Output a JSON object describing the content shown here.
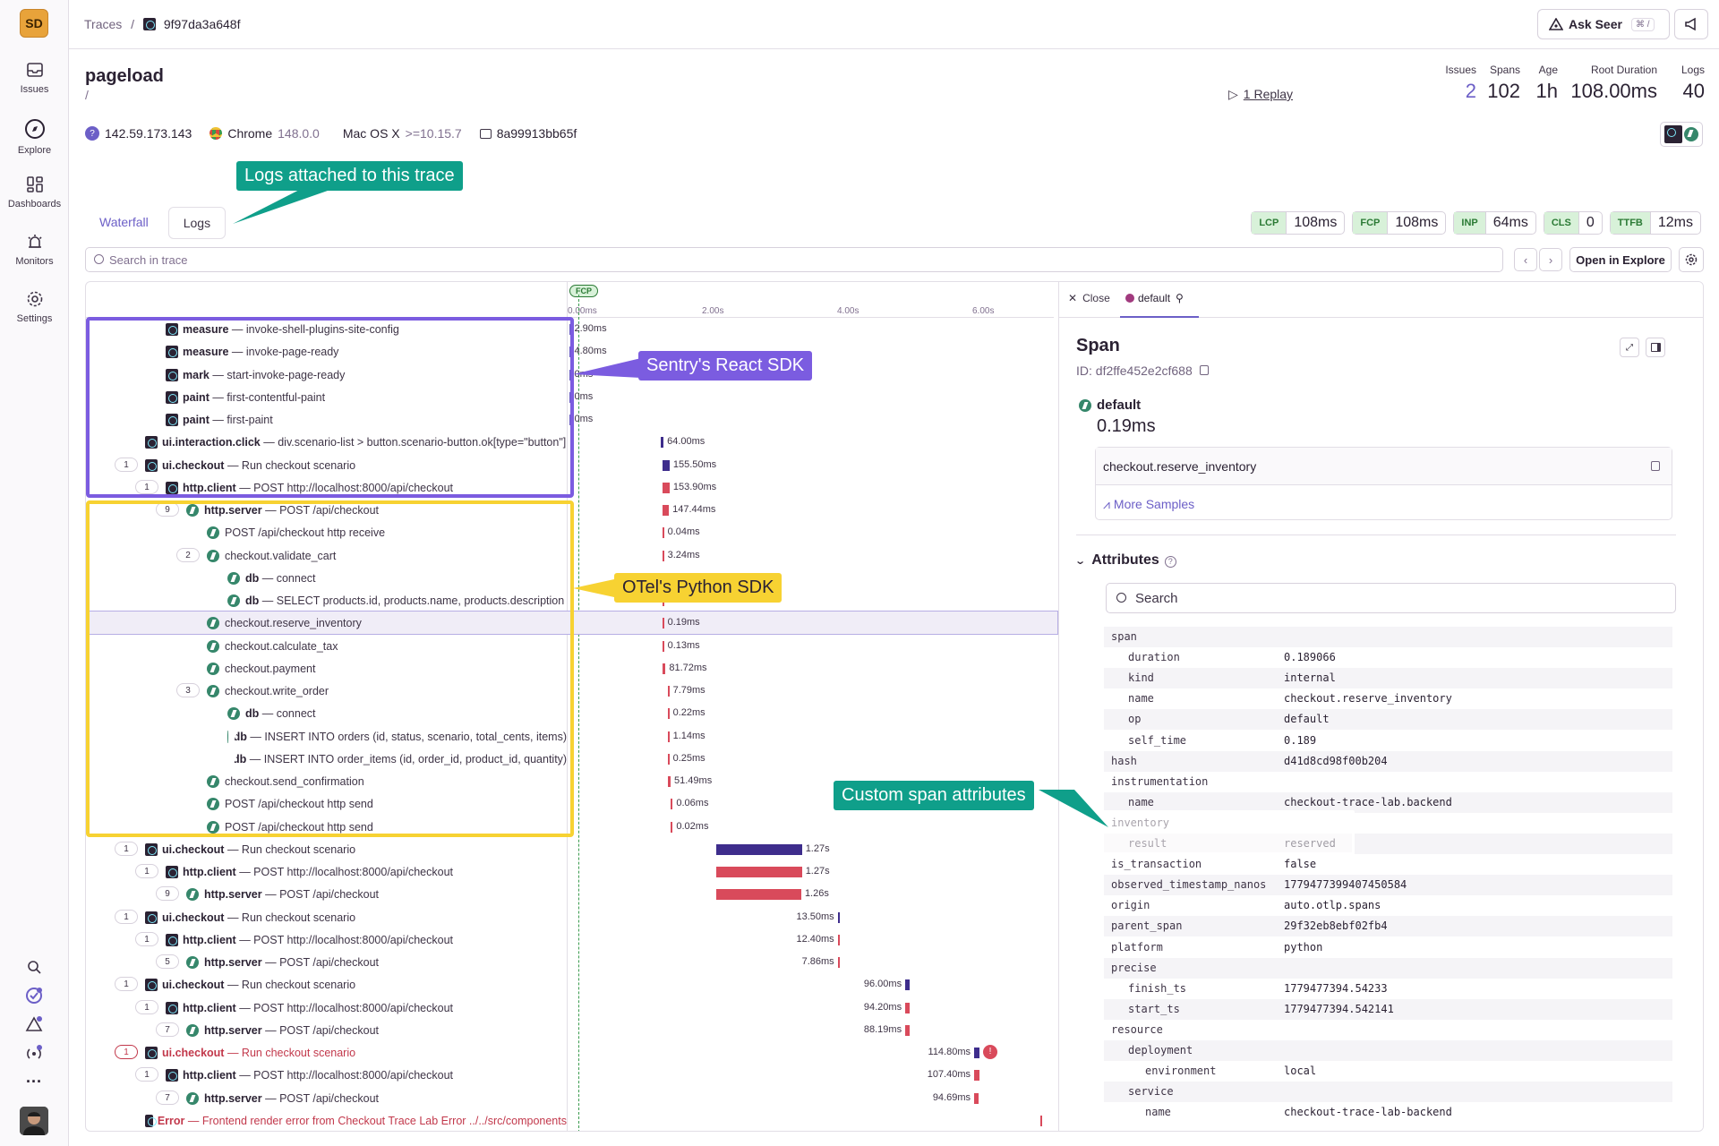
{
  "sidebar": {
    "logo": "SD",
    "items": [
      {
        "label": "Issues",
        "icon": "issues-icon"
      },
      {
        "label": "Explore",
        "icon": "compass-icon"
      },
      {
        "label": "Dashboards",
        "icon": "dashboard-icon"
      },
      {
        "label": "Monitors",
        "icon": "siren-icon"
      },
      {
        "label": "Settings",
        "icon": "gear-icon"
      }
    ],
    "bottom_icons": [
      "search-icon",
      "onboarding-icon",
      "alert-icon",
      "broadcast-icon",
      "more-icon"
    ]
  },
  "topbar": {
    "crumb_root": "Traces",
    "crumb_sep": "/",
    "trace_id": "9f97da3a648f",
    "ask_seer": "Ask Seer",
    "ask_seer_kbd": "⌘ /"
  },
  "header": {
    "title": "pageload",
    "subtitle": "/",
    "replay": "1 Replay",
    "stats": [
      {
        "label": "Issues",
        "value": "2"
      },
      {
        "label": "Spans",
        "value": "102"
      },
      {
        "label": "Age",
        "value": "1h"
      },
      {
        "label": "Root Duration",
        "value": "108.00ms"
      },
      {
        "label": "Logs",
        "value": "40"
      }
    ]
  },
  "meta": {
    "ip": "142.59.173.143",
    "browser": "Chrome",
    "browser_version": "148.0.0",
    "os": "Mac OS X",
    "os_version": ">=10.15.7",
    "replay_id": "8a99913bb65f"
  },
  "tabs": [
    "Waterfall",
    "Logs"
  ],
  "vitals": [
    {
      "key": "LCP",
      "value": "108ms"
    },
    {
      "key": "FCP",
      "value": "108ms"
    },
    {
      "key": "INP",
      "value": "64ms"
    },
    {
      "key": "CLS",
      "value": "0"
    },
    {
      "key": "TTFB",
      "value": "12ms"
    }
  ],
  "search_placeholder": "Search in trace",
  "open_explore": "Open in Explore",
  "annotations": {
    "logs": "Logs attached to this trace",
    "react": "Sentry's React SDK",
    "otel": "OTel's Python SDK",
    "custom": "Custom span attributes"
  },
  "ruler": {
    "fcp": "FCP",
    "ticks": [
      "0.00ms",
      "2.00s",
      "4.00s",
      "6.00s"
    ]
  },
  "spans": [
    {
      "op": "measure",
      "desc": "invoke-shell-plugins-site-config",
      "icon": "react",
      "dur": "2.90ms",
      "start": 0.02,
      "width": 0.001,
      "color": "#6c5fc7"
    },
    {
      "op": "measure",
      "desc": "invoke-page-ready",
      "icon": "react",
      "dur": "4.80ms",
      "start": 0.02,
      "width": 0.001,
      "color": "#6c5fc7"
    },
    {
      "op": "mark",
      "desc": "start-invoke-page-ready",
      "icon": "react",
      "dur": "0ms",
      "start": 0.02,
      "width": 0.0,
      "color": "#6c5fc7"
    },
    {
      "op": "paint",
      "desc": "first-contentful-paint",
      "icon": "react",
      "dur": "0ms",
      "start": 0.02,
      "width": 0.0,
      "color": "#6c5fc7"
    },
    {
      "op": "paint",
      "desc": "first-paint",
      "icon": "react",
      "dur": "0ms",
      "start": 0.02,
      "width": 0.0,
      "color": "#6c5fc7"
    },
    {
      "op": "ui.interaction.click",
      "desc": "div.scenario-list > button.scenario-button.ok[type=\"button\"]",
      "icon": "react",
      "dur": "64.00ms",
      "start": 1.38,
      "width": 0.04,
      "color": "#3e2d8c"
    },
    {
      "op": "ui.checkout",
      "desc": "Run checkout scenario",
      "icon": "react",
      "count": "1",
      "dur": "155.50ms",
      "start": 1.4,
      "width": 0.11,
      "color": "#3e2d8c"
    },
    {
      "op": "http.client",
      "desc": "POST http://localhost:8000/api/checkout",
      "icon": "react",
      "count": "1",
      "dur": "153.90ms",
      "start": 1.4,
      "width": 0.11,
      "color": "#d94a5b"
    },
    {
      "op": "http.server",
      "desc": "POST /api/checkout",
      "icon": "python",
      "count": "9",
      "dur": "147.44ms",
      "start": 1.4,
      "width": 0.1,
      "color": "#d94a5b"
    },
    {
      "op": "",
      "desc": "POST /api/checkout http receive",
      "icon": "python",
      "dur": "0.04ms",
      "start": 1.4,
      "width": 0.0,
      "color": "#d94a5b"
    },
    {
      "op": "",
      "desc": "checkout.validate_cart",
      "icon": "python",
      "count": "2",
      "dur": "3.24ms",
      "start": 1.4,
      "width": 0.003,
      "color": "#d94a5b"
    },
    {
      "op": "db",
      "desc": "connect",
      "icon": "python",
      "dur": "",
      "start": 1.4,
      "width": 0.0,
      "color": "#d94a5b"
    },
    {
      "op": "db",
      "desc": "SELECT products.id, products.name, products.description",
      "icon": "python",
      "dur": "",
      "start": 1.4,
      "width": 0.0,
      "color": "#d94a5b"
    },
    {
      "op": "",
      "desc": "checkout.reserve_inventory",
      "icon": "python",
      "dur": "0.19ms",
      "start": 1.4,
      "width": 0.0,
      "color": "#d94a5b",
      "selected": true
    },
    {
      "op": "",
      "desc": "checkout.calculate_tax",
      "icon": "python",
      "dur": "0.13ms",
      "start": 1.4,
      "width": 0.0,
      "color": "#d94a5b"
    },
    {
      "op": "",
      "desc": "checkout.payment",
      "icon": "python",
      "dur": "81.72ms",
      "start": 1.4,
      "width": 0.05,
      "color": "#d94a5b"
    },
    {
      "op": "",
      "desc": "checkout.write_order",
      "icon": "python",
      "count": "3",
      "dur": "7.79ms",
      "start": 1.48,
      "width": 0.005,
      "color": "#d94a5b"
    },
    {
      "op": "db",
      "desc": "connect",
      "icon": "python",
      "dur": "0.22ms",
      "start": 1.48,
      "width": 0.0,
      "color": "#d94a5b"
    },
    {
      "op": "db",
      "desc": "INSERT INTO orders (id, status, scenario, total_cents, items)",
      "icon": "python",
      "dur": "1.14ms",
      "start": 1.48,
      "width": 0.001,
      "color": "#d94a5b"
    },
    {
      "op": "db",
      "desc": "INSERT INTO order_items (id, order_id, product_id, quantity)",
      "icon": "python",
      "dur": "0.25ms",
      "start": 1.48,
      "width": 0.0,
      "color": "#d94a5b"
    },
    {
      "op": "",
      "desc": "checkout.send_confirmation",
      "icon": "python",
      "dur": "51.49ms",
      "start": 1.49,
      "width": 0.035,
      "color": "#d94a5b"
    },
    {
      "op": "",
      "desc": "POST /api/checkout http send",
      "icon": "python",
      "dur": "0.06ms",
      "start": 1.53,
      "width": 0.0,
      "color": "#d94a5b"
    },
    {
      "op": "",
      "desc": "POST /api/checkout http send",
      "icon": "python",
      "dur": "0.02ms",
      "start": 1.53,
      "width": 0.0,
      "color": "#d94a5b"
    },
    {
      "op": "ui.checkout",
      "desc": "Run checkout scenario",
      "icon": "react",
      "count": "1",
      "dur": "1.27s",
      "start": 2.2,
      "width": 1.27,
      "color": "#3e2d8c"
    },
    {
      "op": "http.client",
      "desc": "POST http://localhost:8000/api/checkout",
      "icon": "react",
      "count": "1",
      "dur": "1.27s",
      "start": 2.2,
      "width": 1.27,
      "color": "#d94a5b"
    },
    {
      "op": "http.server",
      "desc": "POST /api/checkout",
      "icon": "python",
      "count": "9",
      "dur": "1.26s",
      "start": 2.2,
      "width": 1.26,
      "color": "#d94a5b"
    },
    {
      "op": "ui.checkout",
      "desc": "Run checkout scenario",
      "icon": "react",
      "count": "1",
      "dur": "13.50ms",
      "start": 4.0,
      "width": 0.01,
      "color": "#3e2d8c",
      "label_left": true
    },
    {
      "op": "http.client",
      "desc": "POST http://localhost:8000/api/checkout",
      "icon": "react",
      "count": "1",
      "dur": "12.40ms",
      "start": 4.0,
      "width": 0.01,
      "color": "#d94a5b",
      "label_left": true
    },
    {
      "op": "http.server",
      "desc": "POST /api/checkout",
      "icon": "python",
      "count": "5",
      "dur": "7.86ms",
      "start": 4.0,
      "width": 0.006,
      "color": "#d94a5b",
      "label_left": true
    },
    {
      "op": "ui.checkout",
      "desc": "Run checkout scenario",
      "icon": "react",
      "count": "1",
      "dur": "96.00ms",
      "start": 5.0,
      "width": 0.07,
      "color": "#3e2d8c",
      "label_left": true
    },
    {
      "op": "http.client",
      "desc": "POST http://localhost:8000/api/checkout",
      "icon": "react",
      "count": "1",
      "dur": "94.20ms",
      "start": 5.0,
      "width": 0.07,
      "color": "#d94a5b",
      "label_left": true
    },
    {
      "op": "http.server",
      "desc": "POST /api/checkout",
      "icon": "python",
      "count": "7",
      "dur": "88.19ms",
      "start": 5.0,
      "width": 0.065,
      "color": "#d94a5b",
      "label_left": true
    },
    {
      "op": "ui.checkout",
      "desc": "Run checkout scenario",
      "icon": "react",
      "count": "1",
      "dur": "114.80ms",
      "start": 6.02,
      "width": 0.08,
      "color": "#3e2d8c",
      "label_left": true,
      "error": true
    },
    {
      "op": "http.client",
      "desc": "POST http://localhost:8000/api/checkout",
      "icon": "react",
      "count": "1",
      "dur": "107.40ms",
      "start": 6.02,
      "width": 0.075,
      "color": "#d94a5b",
      "label_left": true
    },
    {
      "op": "http.server",
      "desc": "POST /api/checkout",
      "icon": "python",
      "count": "7",
      "dur": "94.69ms",
      "start": 6.02,
      "width": 0.07,
      "color": "#d94a5b",
      "label_left": true
    },
    {
      "op": "Error",
      "desc": "Frontend render error from Checkout Trace Lab Error ../../src/components",
      "icon": "react",
      "dur": "",
      "start": 7.0,
      "width": 0.0,
      "color": "#d94a5b",
      "error": true
    }
  ],
  "detail": {
    "close": "Close",
    "tab": "default",
    "heading": "Span",
    "id_label": "ID: df2ffe452e2cf688",
    "op": "default",
    "duration": "0.19ms",
    "name": "checkout.reserve_inventory",
    "more_samples": "More Samples",
    "attributes_title": "Attributes",
    "attr_search": "Search",
    "attributes": [
      {
        "k": "span",
        "v": "",
        "indent": 0
      },
      {
        "k": "duration",
        "v": "0.189066",
        "indent": 1
      },
      {
        "k": "kind",
        "v": "internal",
        "indent": 1
      },
      {
        "k": "name",
        "v": "checkout.reserve_inventory",
        "indent": 1
      },
      {
        "k": "op",
        "v": "default",
        "indent": 1
      },
      {
        "k": "self_time",
        "v": "0.189",
        "indent": 1
      },
      {
        "k": "hash",
        "v": "d41d8cd98f00b204",
        "indent": 0
      },
      {
        "k": "instrumentation",
        "v": "",
        "indent": 0
      },
      {
        "k": "name",
        "v": "checkout-trace-lab.backend",
        "indent": 1
      },
      {
        "k": "inventory",
        "v": "",
        "indent": 0,
        "hl": true
      },
      {
        "k": "result",
        "v": "reserved",
        "indent": 1,
        "hl": true
      },
      {
        "k": "is_transaction",
        "v": "false",
        "indent": 0
      },
      {
        "k": "observed_timestamp_nanos",
        "v": "1779477399407450584",
        "indent": 0
      },
      {
        "k": "origin",
        "v": "auto.otlp.spans",
        "indent": 0
      },
      {
        "k": "parent_span",
        "v": "29f32eb8ebf02fb4",
        "indent": 0
      },
      {
        "k": "platform",
        "v": "python",
        "indent": 0
      },
      {
        "k": "precise",
        "v": "",
        "indent": 0
      },
      {
        "k": "finish_ts",
        "v": "1779477394.54233",
        "indent": 1
      },
      {
        "k": "start_ts",
        "v": "1779477394.542141",
        "indent": 1
      },
      {
        "k": "resource",
        "v": "",
        "indent": 0
      },
      {
        "k": "deployment",
        "v": "",
        "indent": 1
      },
      {
        "k": "environment",
        "v": "local",
        "indent": 2
      },
      {
        "k": "service",
        "v": "",
        "indent": 1
      },
      {
        "k": "name",
        "v": "checkout-trace-lab-backend",
        "indent": 2
      }
    ]
  },
  "colors": {
    "accent": "#6c5fc7",
    "react_box": "#7b5ce0",
    "otel_box": "#f7d232",
    "custom_ann": "#0f9f8a",
    "error": "#c2384b"
  }
}
